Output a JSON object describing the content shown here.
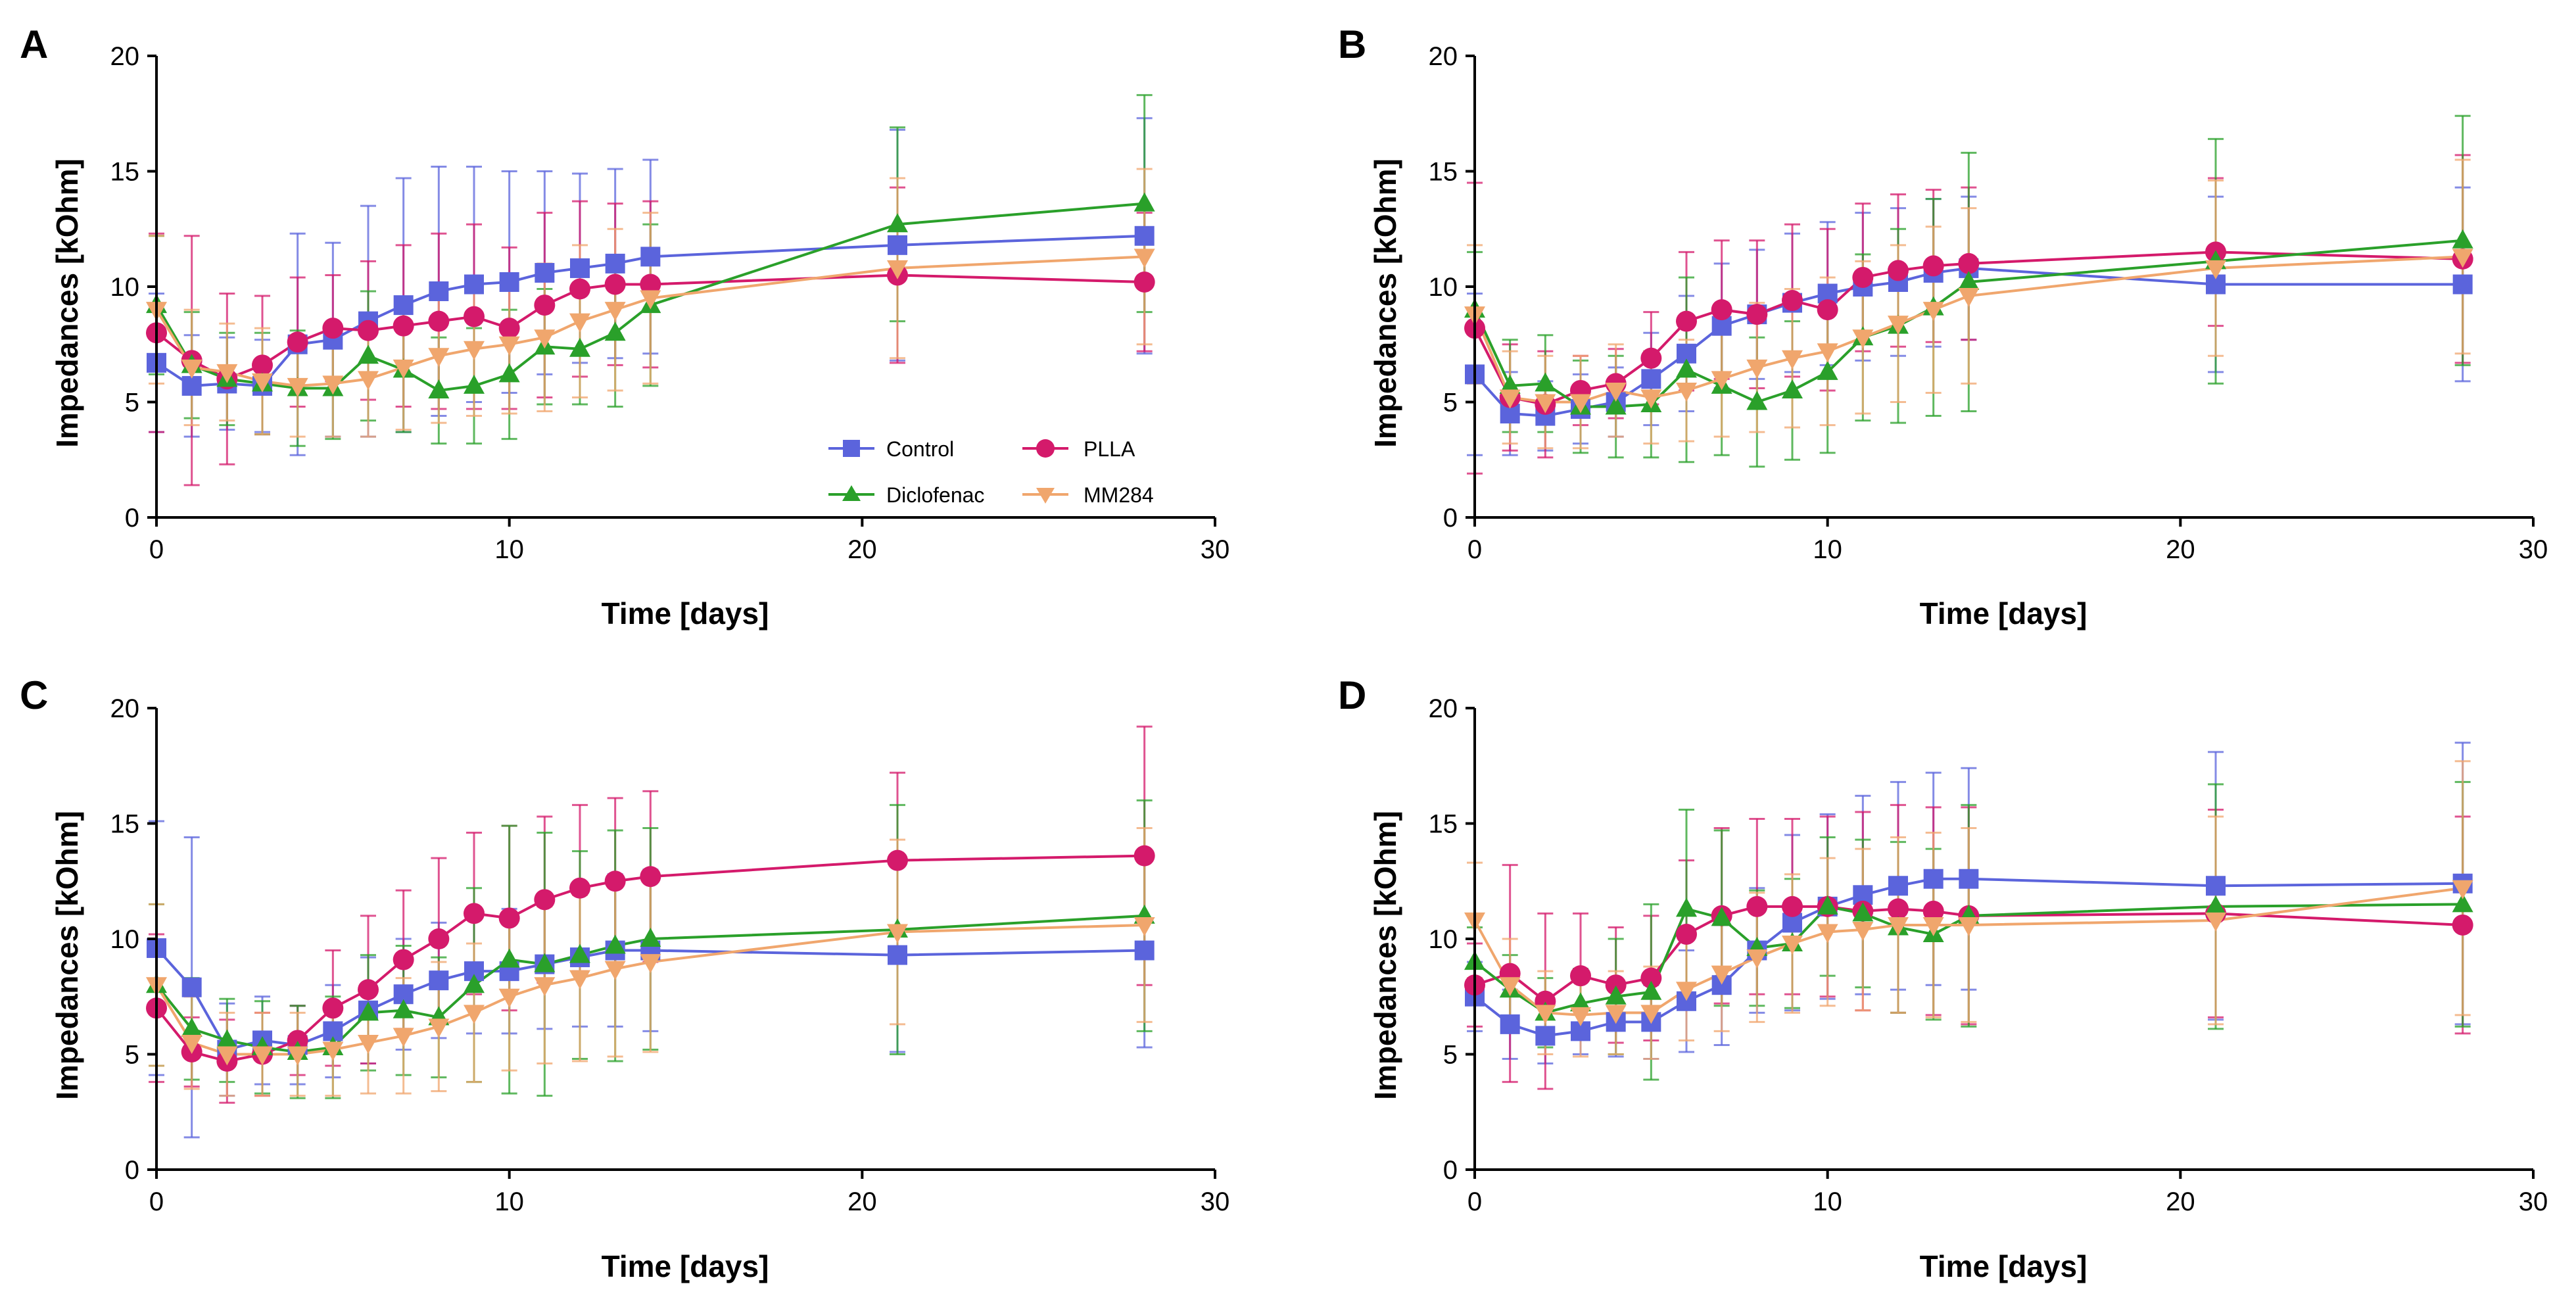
{
  "figure": {
    "legend": {
      "placement": "panel-A bottom-right",
      "entries": [
        "Control",
        "PLLA",
        "Diclofenac",
        "MM284"
      ]
    }
  },
  "chart_data": [
    {
      "type": "line",
      "panel": "A",
      "xlabel": "Time [days]",
      "ylabel": "Impedances [kOhm]",
      "xlim": [
        0,
        30
      ],
      "ylim": [
        0,
        20
      ],
      "xticks": [
        0,
        10,
        20,
        30
      ],
      "yticks": [
        0,
        5,
        10,
        15,
        20
      ],
      "x": [
        0,
        1,
        2,
        3,
        4,
        5,
        6,
        7,
        8,
        9,
        10,
        11,
        12,
        13,
        14,
        21,
        28
      ],
      "series": [
        {
          "name": "Control",
          "color": "#5b64dc",
          "marker": "square",
          "values": [
            6.7,
            5.7,
            5.8,
            5.7,
            7.5,
            7.7,
            8.5,
            9.2,
            9.8,
            10.1,
            10.2,
            10.6,
            10.8,
            11.0,
            11.3,
            11.8,
            12.2
          ],
          "errors": [
            3.0,
            2.2,
            2.0,
            2.0,
            4.8,
            4.2,
            5.0,
            5.5,
            5.4,
            5.1,
            4.8,
            4.4,
            4.1,
            4.1,
            4.2,
            5.0,
            5.1
          ]
        },
        {
          "name": "PLLA",
          "color": "#d41a6b",
          "marker": "circle",
          "values": [
            8.0,
            6.8,
            6.0,
            6.6,
            7.6,
            8.2,
            8.1,
            8.3,
            8.5,
            8.7,
            8.2,
            9.2,
            9.9,
            10.1,
            10.1,
            10.5,
            10.2
          ],
          "errors": [
            4.3,
            5.4,
            3.7,
            3.0,
            2.8,
            2.3,
            3.0,
            3.5,
            3.8,
            4.0,
            3.5,
            4.0,
            3.8,
            3.5,
            3.6,
            3.8,
            3.0
          ]
        },
        {
          "name": "Diclofenac",
          "color": "#2aa02a",
          "marker": "triangle-up",
          "values": [
            9.2,
            6.6,
            6.0,
            5.8,
            5.6,
            5.6,
            7.0,
            6.4,
            5.5,
            5.7,
            6.2,
            7.4,
            7.3,
            8.0,
            9.2,
            12.7,
            13.6
          ],
          "errors": [
            3.0,
            2.3,
            2.0,
            2.2,
            2.5,
            2.2,
            2.8,
            2.7,
            2.3,
            2.5,
            2.8,
            2.5,
            2.4,
            3.2,
            3.5,
            4.2,
            4.7
          ]
        },
        {
          "name": "MM284",
          "color": "#f0a66d",
          "marker": "triangle-down",
          "values": [
            9.0,
            6.5,
            6.3,
            5.9,
            5.7,
            5.8,
            6.0,
            6.5,
            7.0,
            7.3,
            7.5,
            7.8,
            8.5,
            9.0,
            9.5,
            10.8,
            11.3
          ],
          "errors": [
            3.2,
            2.5,
            2.1,
            2.3,
            2.2,
            2.3,
            2.5,
            2.7,
            2.9,
            2.9,
            3.0,
            3.2,
            3.3,
            3.5,
            3.7,
            3.9,
            3.8
          ]
        }
      ]
    },
    {
      "type": "line",
      "panel": "B",
      "xlabel": "Time [days]",
      "ylabel": "Impedances [kOhm]",
      "xlim": [
        0,
        30
      ],
      "ylim": [
        0,
        20
      ],
      "xticks": [
        0,
        10,
        20,
        30
      ],
      "yticks": [
        0,
        5,
        10,
        15,
        20
      ],
      "x": [
        0,
        1,
        2,
        3,
        4,
        5,
        6,
        7,
        8,
        9,
        10,
        11,
        12,
        13,
        14,
        21,
        28
      ],
      "series": [
        {
          "name": "Control",
          "color": "#5b64dc",
          "marker": "square",
          "values": [
            6.2,
            4.5,
            4.4,
            4.7,
            5.0,
            6.0,
            7.1,
            8.3,
            8.8,
            9.3,
            9.7,
            10.0,
            10.2,
            10.6,
            10.8,
            10.1,
            10.1
          ],
          "errors": [
            3.5,
            1.8,
            1.5,
            1.5,
            1.5,
            2.0,
            2.5,
            2.7,
            2.8,
            3.0,
            3.1,
            3.2,
            3.2,
            3.2,
            3.1,
            3.8,
            4.2
          ]
        },
        {
          "name": "PLLA",
          "color": "#d41a6b",
          "marker": "circle",
          "values": [
            8.2,
            5.2,
            4.9,
            5.5,
            5.8,
            6.9,
            8.5,
            9.0,
            8.8,
            9.4,
            9.0,
            10.4,
            10.7,
            10.9,
            11.0,
            11.5,
            11.2
          ],
          "errors": [
            6.3,
            2.3,
            2.3,
            1.5,
            1.5,
            2.0,
            3.0,
            3.0,
            3.2,
            3.3,
            3.5,
            3.2,
            3.3,
            3.3,
            3.3,
            3.2,
            4.5
          ]
        },
        {
          "name": "Diclofenac",
          "color": "#2aa02a",
          "marker": "triangle-up",
          "values": [
            9.0,
            5.7,
            5.8,
            4.8,
            4.8,
            4.9,
            6.4,
            5.7,
            5.0,
            5.5,
            6.3,
            7.8,
            8.3,
            9.1,
            10.2,
            11.1,
            12.0
          ],
          "errors": [
            2.5,
            2.0,
            2.1,
            2.0,
            2.2,
            2.3,
            4.0,
            3.0,
            2.8,
            3.0,
            3.5,
            3.6,
            4.2,
            4.7,
            5.6,
            5.3,
            5.4
          ]
        },
        {
          "name": "MM284",
          "color": "#f0a66d",
          "marker": "triangle-down",
          "values": [
            8.8,
            5.2,
            5.0,
            5.0,
            5.5,
            5.2,
            5.5,
            6.0,
            6.5,
            6.9,
            7.2,
            7.8,
            8.4,
            9.0,
            9.6,
            10.8,
            11.3
          ],
          "errors": [
            3.0,
            2.0,
            2.0,
            2.0,
            2.0,
            2.0,
            2.2,
            2.5,
            2.8,
            3.0,
            3.2,
            3.3,
            3.4,
            3.6,
            3.8,
            3.8,
            4.2
          ]
        }
      ]
    },
    {
      "type": "line",
      "panel": "C",
      "xlabel": "Time [days]",
      "ylabel": "Impedances [kOhm]",
      "xlim": [
        0,
        30
      ],
      "ylim": [
        0,
        20
      ],
      "xticks": [
        0,
        10,
        20,
        30
      ],
      "yticks": [
        0,
        5,
        10,
        15,
        20
      ],
      "x": [
        0,
        1,
        2,
        3,
        4,
        5,
        6,
        7,
        8,
        9,
        10,
        11,
        12,
        13,
        14,
        21,
        28
      ],
      "series": [
        {
          "name": "Control",
          "color": "#5b64dc",
          "marker": "square",
          "values": [
            9.6,
            7.9,
            5.2,
            5.6,
            5.4,
            6.0,
            6.9,
            7.6,
            8.2,
            8.6,
            8.6,
            8.9,
            9.2,
            9.5,
            9.5,
            9.3,
            9.5
          ],
          "errors": [
            5.5,
            6.5,
            2.0,
            1.9,
            1.7,
            2.0,
            2.3,
            2.4,
            2.5,
            2.7,
            2.7,
            2.8,
            3.0,
            3.3,
            3.5,
            4.2,
            4.2
          ]
        },
        {
          "name": "PLLA",
          "color": "#d41a6b",
          "marker": "circle",
          "values": [
            7.0,
            5.1,
            4.7,
            5.0,
            5.6,
            7.0,
            7.8,
            9.1,
            10.0,
            11.1,
            10.9,
            11.7,
            12.2,
            12.5,
            12.7,
            13.4,
            13.6
          ],
          "errors": [
            3.2,
            1.5,
            1.8,
            1.8,
            1.5,
            2.5,
            3.2,
            3.0,
            3.5,
            3.5,
            4.0,
            3.6,
            3.6,
            3.6,
            3.7,
            3.8,
            5.6
          ]
        },
        {
          "name": "Diclofenac",
          "color": "#2aa02a",
          "marker": "triangle-up",
          "values": [
            8.0,
            6.1,
            5.6,
            5.3,
            5.1,
            5.3,
            6.8,
            6.9,
            6.6,
            8.0,
            9.1,
            8.9,
            9.3,
            9.7,
            10.0,
            10.4,
            11.0
          ],
          "errors": [
            3.5,
            2.2,
            1.8,
            2.0,
            2.0,
            2.2,
            2.5,
            2.8,
            2.6,
            4.2,
            5.8,
            5.7,
            4.5,
            5.0,
            4.8,
            5.4,
            5.0
          ]
        },
        {
          "name": "MM284",
          "color": "#f0a66d",
          "marker": "triangle-down",
          "values": [
            8.0,
            5.5,
            5.0,
            5.0,
            5.0,
            5.2,
            5.5,
            5.8,
            6.2,
            6.8,
            7.5,
            8.0,
            8.3,
            8.7,
            9.0,
            10.3,
            10.6
          ],
          "errors": [
            3.5,
            2.0,
            1.8,
            1.8,
            1.8,
            2.0,
            2.2,
            2.5,
            2.8,
            3.0,
            3.2,
            3.4,
            3.6,
            3.8,
            3.9,
            4.0,
            4.2
          ]
        }
      ]
    },
    {
      "type": "line",
      "panel": "D",
      "xlabel": "Time [days]",
      "ylabel": "Impedances [kOhm]",
      "xlim": [
        0,
        30
      ],
      "ylim": [
        0,
        20
      ],
      "xticks": [
        0,
        10,
        20,
        30
      ],
      "yticks": [
        0,
        5,
        10,
        15,
        20
      ],
      "x": [
        0,
        1,
        2,
        3,
        4,
        5,
        6,
        7,
        8,
        9,
        10,
        11,
        12,
        13,
        14,
        21,
        28
      ],
      "series": [
        {
          "name": "Control",
          "color": "#5b64dc",
          "marker": "square",
          "values": [
            7.5,
            6.3,
            5.8,
            6.0,
            6.4,
            6.4,
            7.3,
            8.0,
            9.5,
            10.7,
            11.4,
            11.9,
            12.3,
            12.6,
            12.6,
            12.3,
            12.4
          ],
          "errors": [
            1.5,
            1.5,
            1.2,
            1.0,
            1.5,
            1.6,
            2.2,
            2.6,
            2.7,
            3.8,
            4.0,
            4.3,
            4.5,
            4.6,
            4.8,
            5.8,
            6.1
          ]
        },
        {
          "name": "PLLA",
          "color": "#d41a6b",
          "marker": "circle",
          "values": [
            8.0,
            8.5,
            7.3,
            8.4,
            8.0,
            8.3,
            10.2,
            11.0,
            11.4,
            11.4,
            11.4,
            11.2,
            11.3,
            11.2,
            11.0,
            11.1,
            10.6
          ],
          "errors": [
            1.8,
            4.7,
            3.8,
            2.7,
            2.5,
            2.7,
            3.2,
            3.8,
            3.8,
            3.8,
            3.9,
            4.3,
            4.5,
            4.5,
            4.7,
            4.5,
            4.7
          ]
        },
        {
          "name": "Diclofenac",
          "color": "#2aa02a",
          "marker": "triangle-up",
          "values": [
            9.0,
            7.8,
            6.8,
            7.2,
            7.5,
            7.7,
            11.3,
            10.9,
            9.6,
            9.8,
            11.4,
            11.1,
            10.5,
            10.2,
            11.0,
            11.4,
            11.5
          ],
          "errors": [
            1.5,
            1.5,
            1.5,
            1.5,
            2.5,
            3.8,
            4.3,
            3.8,
            2.5,
            2.8,
            3.0,
            3.2,
            3.7,
            3.7,
            4.8,
            5.3,
            5.3
          ]
        },
        {
          "name": "MM284",
          "color": "#f0a66d",
          "marker": "triangle-down",
          "values": [
            10.8,
            8.0,
            6.8,
            6.7,
            6.8,
            6.8,
            7.8,
            8.5,
            9.2,
            9.8,
            10.3,
            10.4,
            10.6,
            10.6,
            10.6,
            10.8,
            12.2
          ],
          "errors": [
            2.5,
            2.0,
            1.8,
            1.8,
            1.8,
            2.0,
            2.2,
            2.5,
            2.8,
            3.0,
            3.2,
            3.5,
            3.8,
            4.0,
            4.2,
            4.5,
            5.5
          ]
        }
      ]
    }
  ]
}
